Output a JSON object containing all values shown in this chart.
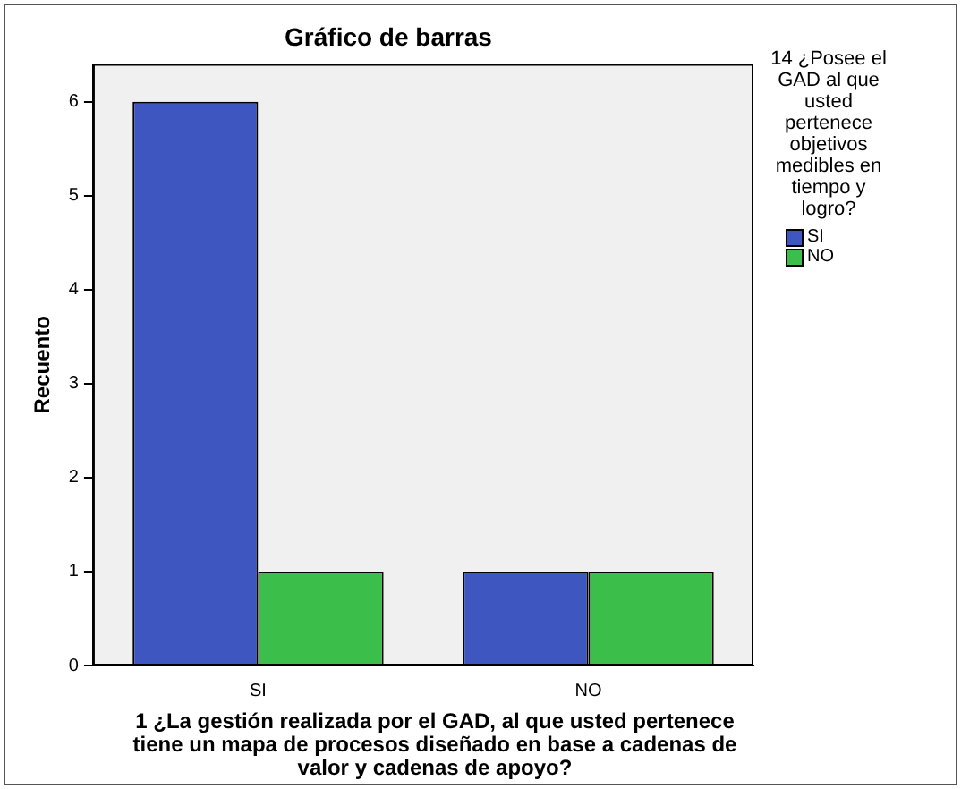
{
  "chart_data": {
    "type": "bar",
    "title": "Gráfico de barras",
    "xlabel": "1 ¿La gestión realizada por el GAD, al que usted pertenece tiene un mapa de procesos diseñado en base a cadenas de valor y cadenas de apoyo?",
    "ylabel": "Recuento",
    "legend_title": "14 ¿Posee el GAD al que usted pertenece objetivos medibles en tiempo y logro?",
    "categories": [
      "SI",
      "NO"
    ],
    "series": [
      {
        "name": "SI",
        "color": "#3e56c0",
        "values": [
          6,
          1
        ]
      },
      {
        "name": "NO",
        "color": "#3cbf4a",
        "values": [
          1,
          1
        ]
      }
    ],
    "ylim": [
      0,
      6.4
    ],
    "yticks": [
      0,
      1,
      2,
      3,
      4,
      5,
      6
    ],
    "grid": false,
    "legend": "right"
  }
}
